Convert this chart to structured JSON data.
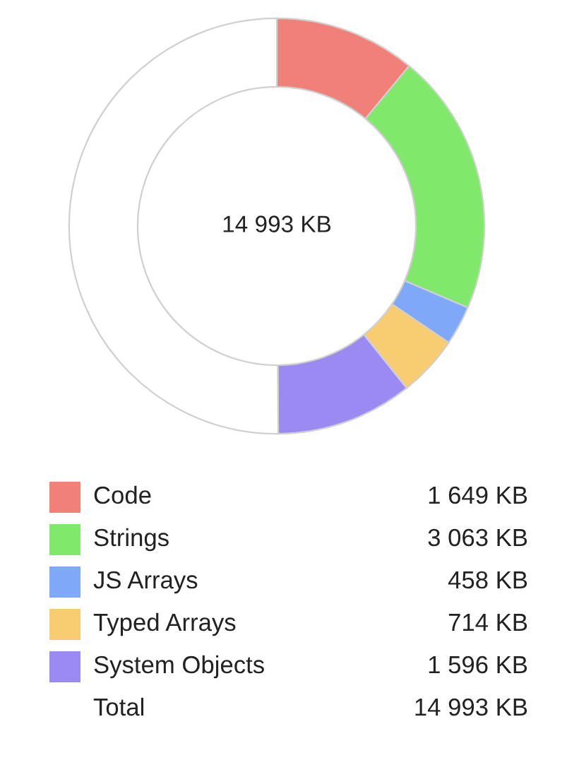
{
  "chart_data": {
    "type": "donut",
    "categories": [
      "Code",
      "Strings",
      "JS Arrays",
      "Typed Arrays",
      "System Objects",
      null
    ],
    "values": [
      1649,
      3063,
      458,
      714,
      1596,
      7513
    ],
    "colors": [
      "#f08078",
      "#80e86a",
      "#80a8f8",
      "#f8cc70",
      "#9a8af2",
      "#ffffff"
    ],
    "value_labels": [
      "1 649 KB",
      "3 063 KB",
      "458 KB",
      "714 KB",
      "1 596 KB",
      null
    ],
    "legend": "bottom",
    "annotations": [
      "14 993 KB",
      "Total",
      "14 993 KB"
    ]
  }
}
